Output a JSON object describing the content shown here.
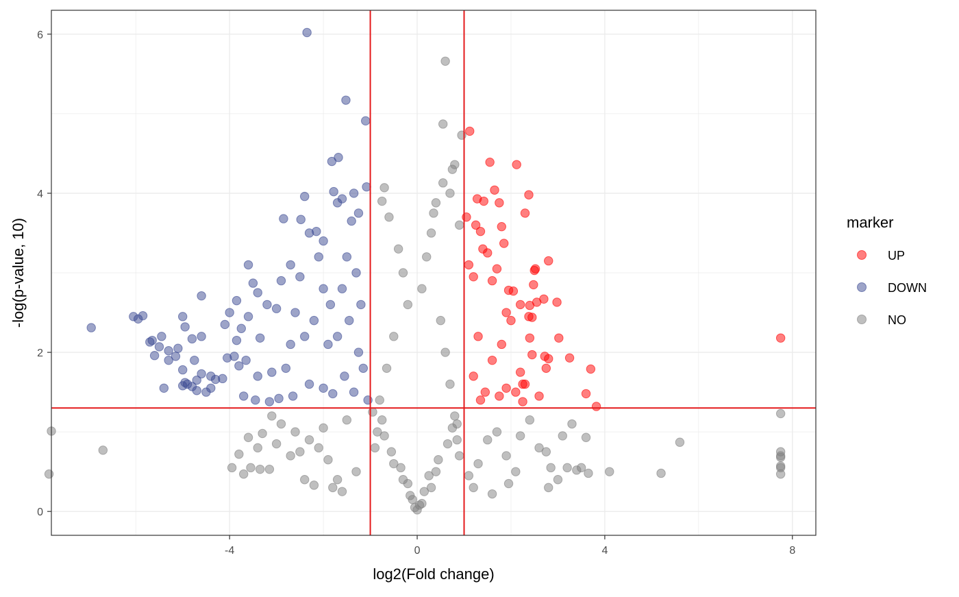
{
  "chart_data": {
    "type": "scatter",
    "title": "",
    "xlabel": "log2(Fold change)",
    "ylabel": "-log(p-value, 10)",
    "xlim": [
      -7.8,
      8.5
    ],
    "ylim": [
      -0.3,
      6.3
    ],
    "x_ticks": [
      -4,
      0,
      4,
      8
    ],
    "y_ticks": [
      0,
      2,
      4,
      6
    ],
    "grid": true,
    "thresholds": {
      "x": [
        -1,
        1
      ],
      "y": 1.3,
      "color": "#e41a1c"
    },
    "legend": {
      "title": "marker",
      "placement": "right",
      "entries": [
        {
          "label": "UP",
          "color": "#ff0000"
        },
        {
          "label": "DOWN",
          "color": "#3b4992"
        },
        {
          "label": "NO",
          "color": "#808080"
        }
      ]
    },
    "series": [
      {
        "name": "UP",
        "color": "#ff0000",
        "points": [
          [
            1.12,
            4.78
          ],
          [
            1.55,
            4.39
          ],
          [
            2.12,
            4.36
          ],
          [
            1.65,
            4.04
          ],
          [
            2.38,
            3.98
          ],
          [
            1.42,
            3.9
          ],
          [
            1.28,
            3.93
          ],
          [
            1.75,
            3.88
          ],
          [
            1.05,
            3.7
          ],
          [
            2.3,
            3.75
          ],
          [
            1.8,
            3.58
          ],
          [
            1.25,
            3.6
          ],
          [
            1.35,
            3.52
          ],
          [
            1.85,
            3.37
          ],
          [
            2.8,
            3.15
          ],
          [
            2.52,
            3.05
          ],
          [
            2.5,
            3.03
          ],
          [
            2.48,
            2.85
          ],
          [
            1.6,
            2.9
          ],
          [
            2.7,
            2.67
          ],
          [
            2.98,
            2.63
          ],
          [
            2.55,
            2.63
          ],
          [
            2.2,
            2.6
          ],
          [
            2.4,
            2.59
          ],
          [
            2.45,
            2.44
          ],
          [
            2.38,
            2.45
          ],
          [
            1.95,
            2.78
          ],
          [
            2.05,
            2.77
          ],
          [
            3.02,
            2.18
          ],
          [
            2.4,
            2.18
          ],
          [
            2.8,
            1.92
          ],
          [
            2.72,
            1.95
          ],
          [
            3.25,
            1.93
          ],
          [
            2.45,
            1.97
          ],
          [
            2.75,
            1.8
          ],
          [
            3.7,
            1.79
          ],
          [
            2.2,
            1.75
          ],
          [
            2.25,
            1.6
          ],
          [
            2.3,
            1.6
          ],
          [
            2.6,
            1.45
          ],
          [
            3.6,
            1.48
          ],
          [
            3.82,
            1.32
          ],
          [
            2.25,
            1.38
          ],
          [
            7.75,
            2.18
          ],
          [
            1.4,
            3.3
          ],
          [
            1.5,
            3.25
          ],
          [
            1.1,
            3.1
          ],
          [
            1.7,
            3.05
          ],
          [
            1.2,
            2.95
          ],
          [
            1.9,
            2.5
          ],
          [
            2.0,
            2.4
          ],
          [
            1.3,
            2.2
          ],
          [
            1.8,
            2.1
          ],
          [
            1.6,
            1.9
          ],
          [
            1.2,
            1.7
          ],
          [
            1.9,
            1.55
          ],
          [
            1.45,
            1.5
          ],
          [
            1.75,
            1.45
          ],
          [
            2.1,
            1.5
          ],
          [
            1.35,
            1.4
          ]
        ]
      },
      {
        "name": "DOWN",
        "color": "#3b4992",
        "points": [
          [
            -2.35,
            6.02
          ],
          [
            -1.52,
            5.17
          ],
          [
            -1.1,
            4.91
          ],
          [
            -1.68,
            4.45
          ],
          [
            -1.82,
            4.4
          ],
          [
            -1.08,
            4.08
          ],
          [
            -1.35,
            4.0
          ],
          [
            -2.4,
            3.96
          ],
          [
            -1.78,
            4.02
          ],
          [
            -1.6,
            3.93
          ],
          [
            -1.7,
            3.88
          ],
          [
            -2.48,
            3.67
          ],
          [
            -2.85,
            3.68
          ],
          [
            -1.25,
            3.75
          ],
          [
            -1.4,
            3.65
          ],
          [
            -2.3,
            3.5
          ],
          [
            -2.15,
            3.52
          ],
          [
            -3.6,
            3.1
          ],
          [
            -3.5,
            2.87
          ],
          [
            -2.7,
            3.1
          ],
          [
            -2.0,
            3.4
          ],
          [
            -2.5,
            2.95
          ],
          [
            -2.9,
            2.9
          ],
          [
            -3.4,
            2.75
          ],
          [
            -4.6,
            2.71
          ],
          [
            -3.85,
            2.65
          ],
          [
            -4.0,
            2.5
          ],
          [
            -3.6,
            2.45
          ],
          [
            -3.2,
            2.6
          ],
          [
            -3.0,
            2.55
          ],
          [
            -5.85,
            2.46
          ],
          [
            -5.95,
            2.42
          ],
          [
            -6.05,
            2.45
          ],
          [
            -5.0,
            2.45
          ],
          [
            -6.95,
            2.31
          ],
          [
            -4.95,
            2.32
          ],
          [
            -4.1,
            2.35
          ],
          [
            -3.75,
            2.3
          ],
          [
            -5.45,
            2.2
          ],
          [
            -5.65,
            2.15
          ],
          [
            -5.7,
            2.13
          ],
          [
            -4.6,
            2.2
          ],
          [
            -4.8,
            2.17
          ],
          [
            -3.85,
            2.15
          ],
          [
            -3.35,
            2.18
          ],
          [
            -5.1,
            2.05
          ],
          [
            -5.3,
            2.02
          ],
          [
            -5.5,
            2.07
          ],
          [
            -5.15,
            1.95
          ],
          [
            -5.3,
            1.9
          ],
          [
            -5.6,
            1.96
          ],
          [
            -4.75,
            1.9
          ],
          [
            -4.05,
            1.93
          ],
          [
            -3.9,
            1.95
          ],
          [
            -3.65,
            1.9
          ],
          [
            -5.0,
            1.78
          ],
          [
            -4.6,
            1.73
          ],
          [
            -4.4,
            1.7
          ],
          [
            -4.3,
            1.66
          ],
          [
            -4.15,
            1.67
          ],
          [
            -4.7,
            1.65
          ],
          [
            -4.9,
            1.6
          ],
          [
            -5.0,
            1.58
          ],
          [
            -5.4,
            1.55
          ],
          [
            -4.95,
            1.62
          ],
          [
            -4.8,
            1.57
          ],
          [
            -4.7,
            1.52
          ],
          [
            -4.5,
            1.5
          ],
          [
            -4.4,
            1.55
          ],
          [
            -3.7,
            1.45
          ],
          [
            -3.45,
            1.4
          ],
          [
            -3.15,
            1.38
          ],
          [
            -2.95,
            1.42
          ],
          [
            -2.65,
            1.45
          ],
          [
            -3.8,
            1.83
          ],
          [
            -3.4,
            1.7
          ],
          [
            -3.1,
            1.75
          ],
          [
            -2.8,
            1.8
          ],
          [
            -2.3,
            1.6
          ],
          [
            -2.0,
            1.55
          ],
          [
            -1.8,
            1.48
          ],
          [
            -2.1,
            3.2
          ],
          [
            -1.5,
            3.2
          ],
          [
            -1.3,
            3.0
          ],
          [
            -1.6,
            2.8
          ],
          [
            -1.2,
            2.6
          ],
          [
            -1.45,
            2.4
          ],
          [
            -1.7,
            2.2
          ],
          [
            -1.25,
            2.0
          ],
          [
            -1.9,
            2.1
          ],
          [
            -1.15,
            1.8
          ],
          [
            -1.55,
            1.7
          ],
          [
            -1.35,
            1.5
          ],
          [
            -1.05,
            1.4
          ],
          [
            -2.6,
            2.5
          ],
          [
            -2.2,
            2.4
          ],
          [
            -2.4,
            2.2
          ],
          [
            -2.0,
            2.8
          ],
          [
            -1.85,
            2.6
          ],
          [
            -2.7,
            2.1
          ]
        ]
      },
      {
        "name": "NO",
        "color": "#808080",
        "points": [
          [
            0.6,
            5.66
          ],
          [
            0.55,
            4.87
          ],
          [
            0.95,
            4.73
          ],
          [
            0.8,
            4.36
          ],
          [
            0.75,
            4.3
          ],
          [
            0.55,
            4.13
          ],
          [
            -0.7,
            4.07
          ],
          [
            0.7,
            4.0
          ],
          [
            -0.75,
            3.9
          ],
          [
            0.4,
            3.88
          ],
          [
            0.35,
            3.75
          ],
          [
            -0.6,
            3.7
          ],
          [
            0.9,
            3.6
          ],
          [
            0.3,
            3.5
          ],
          [
            -0.4,
            3.3
          ],
          [
            0.2,
            3.2
          ],
          [
            -0.3,
            3.0
          ],
          [
            0.1,
            2.8
          ],
          [
            -0.2,
            2.6
          ],
          [
            0.5,
            2.4
          ],
          [
            -0.5,
            2.2
          ],
          [
            0.6,
            2.0
          ],
          [
            -0.65,
            1.8
          ],
          [
            0.7,
            1.6
          ],
          [
            -0.8,
            1.4
          ],
          [
            0.8,
            1.2
          ],
          [
            -0.85,
            1.0
          ],
          [
            0.85,
            0.9
          ],
          [
            -0.9,
            0.8
          ],
          [
            0.9,
            0.7
          ],
          [
            -0.5,
            0.6
          ],
          [
            0.4,
            0.5
          ],
          [
            -0.3,
            0.4
          ],
          [
            0.3,
            0.3
          ],
          [
            -0.15,
            0.2
          ],
          [
            0.1,
            0.1
          ],
          [
            0.0,
            0.02
          ],
          [
            -0.05,
            0.05
          ],
          [
            0.05,
            0.08
          ],
          [
            -0.1,
            0.15
          ],
          [
            0.15,
            0.25
          ],
          [
            -0.2,
            0.35
          ],
          [
            0.25,
            0.45
          ],
          [
            -0.35,
            0.55
          ],
          [
            0.45,
            0.65
          ],
          [
            -0.55,
            0.75
          ],
          [
            0.65,
            0.85
          ],
          [
            -0.7,
            0.95
          ],
          [
            0.75,
            1.05
          ],
          [
            -0.75,
            1.15
          ],
          [
            0.85,
            1.1
          ],
          [
            -0.95,
            1.25
          ],
          [
            -7.8,
            1.01
          ],
          [
            -7.85,
            0.47
          ],
          [
            -6.7,
            0.77
          ],
          [
            -3.95,
            0.55
          ],
          [
            -3.8,
            0.72
          ],
          [
            -3.7,
            0.47
          ],
          [
            -3.55,
            0.55
          ],
          [
            -3.35,
            0.53
          ],
          [
            -3.15,
            0.53
          ],
          [
            -3.4,
            0.8
          ],
          [
            -3.6,
            0.93
          ],
          [
            -3.3,
            0.98
          ],
          [
            -3.0,
            0.85
          ],
          [
            -2.7,
            0.7
          ],
          [
            -2.5,
            0.75
          ],
          [
            -2.9,
            1.1
          ],
          [
            -3.1,
            1.2
          ],
          [
            -2.6,
            1.0
          ],
          [
            -2.3,
            0.9
          ],
          [
            -2.1,
            0.8
          ],
          [
            -1.9,
            0.65
          ],
          [
            -2.4,
            0.4
          ],
          [
            -2.2,
            0.33
          ],
          [
            -1.8,
            0.3
          ],
          [
            -1.6,
            0.25
          ],
          [
            -1.3,
            0.5
          ],
          [
            -1.5,
            1.15
          ],
          [
            -2.0,
            1.05
          ],
          [
            -1.7,
            0.4
          ],
          [
            1.1,
            0.45
          ],
          [
            1.3,
            0.6
          ],
          [
            1.5,
            0.9
          ],
          [
            1.7,
            1.0
          ],
          [
            1.9,
            0.7
          ],
          [
            2.1,
            0.5
          ],
          [
            2.2,
            0.95
          ],
          [
            2.4,
            1.15
          ],
          [
            2.6,
            0.8
          ],
          [
            2.75,
            0.75
          ],
          [
            2.85,
            0.55
          ],
          [
            3.0,
            0.4
          ],
          [
            3.1,
            0.95
          ],
          [
            3.2,
            0.55
          ],
          [
            3.3,
            1.1
          ],
          [
            3.4,
            0.52
          ],
          [
            3.5,
            0.55
          ],
          [
            3.6,
            0.93
          ],
          [
            3.65,
            0.48
          ],
          [
            4.1,
            0.5
          ],
          [
            5.2,
            0.48
          ],
          [
            5.6,
            0.87
          ],
          [
            7.75,
            1.23
          ],
          [
            7.75,
            0.75
          ],
          [
            7.75,
            0.7
          ],
          [
            7.75,
            0.68
          ],
          [
            7.75,
            0.57
          ],
          [
            7.75,
            0.55
          ],
          [
            7.75,
            0.47
          ],
          [
            2.8,
            0.3
          ],
          [
            1.95,
            0.35
          ],
          [
            1.6,
            0.22
          ],
          [
            1.2,
            0.3
          ]
        ]
      }
    ]
  }
}
